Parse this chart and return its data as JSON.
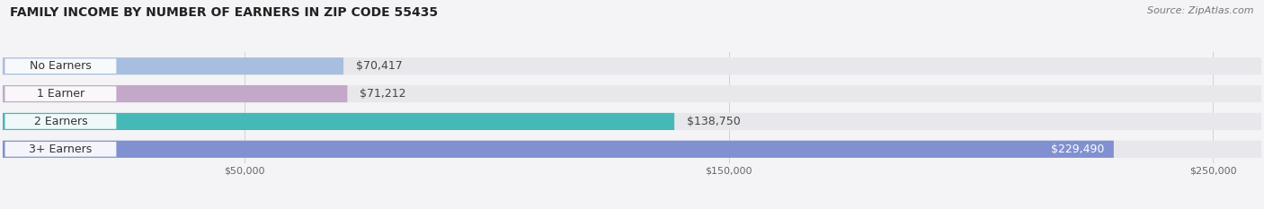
{
  "title": "FAMILY INCOME BY NUMBER OF EARNERS IN ZIP CODE 55435",
  "source": "Source: ZipAtlas.com",
  "categories": [
    "No Earners",
    "1 Earner",
    "2 Earners",
    "3+ Earners"
  ],
  "values": [
    70417,
    71212,
    138750,
    229490
  ],
  "labels": [
    "$70,417",
    "$71,212",
    "$138,750",
    "$229,490"
  ],
  "bar_colors": [
    "#a8bee0",
    "#c4a8c8",
    "#45b8b8",
    "#8090d0"
  ],
  "background_color": "#f4f4f6",
  "bar_bg_color": "#e8e8ec",
  "xlim": [
    0,
    260000
  ],
  "xticks": [
    50000,
    150000,
    250000
  ],
  "xticklabels": [
    "$50,000",
    "$150,000",
    "$250,000"
  ],
  "title_fontsize": 10,
  "source_fontsize": 8,
  "label_fontsize": 9,
  "category_fontsize": 9,
  "bar_height": 0.62,
  "figsize": [
    14.06,
    2.33
  ],
  "dpi": 100
}
